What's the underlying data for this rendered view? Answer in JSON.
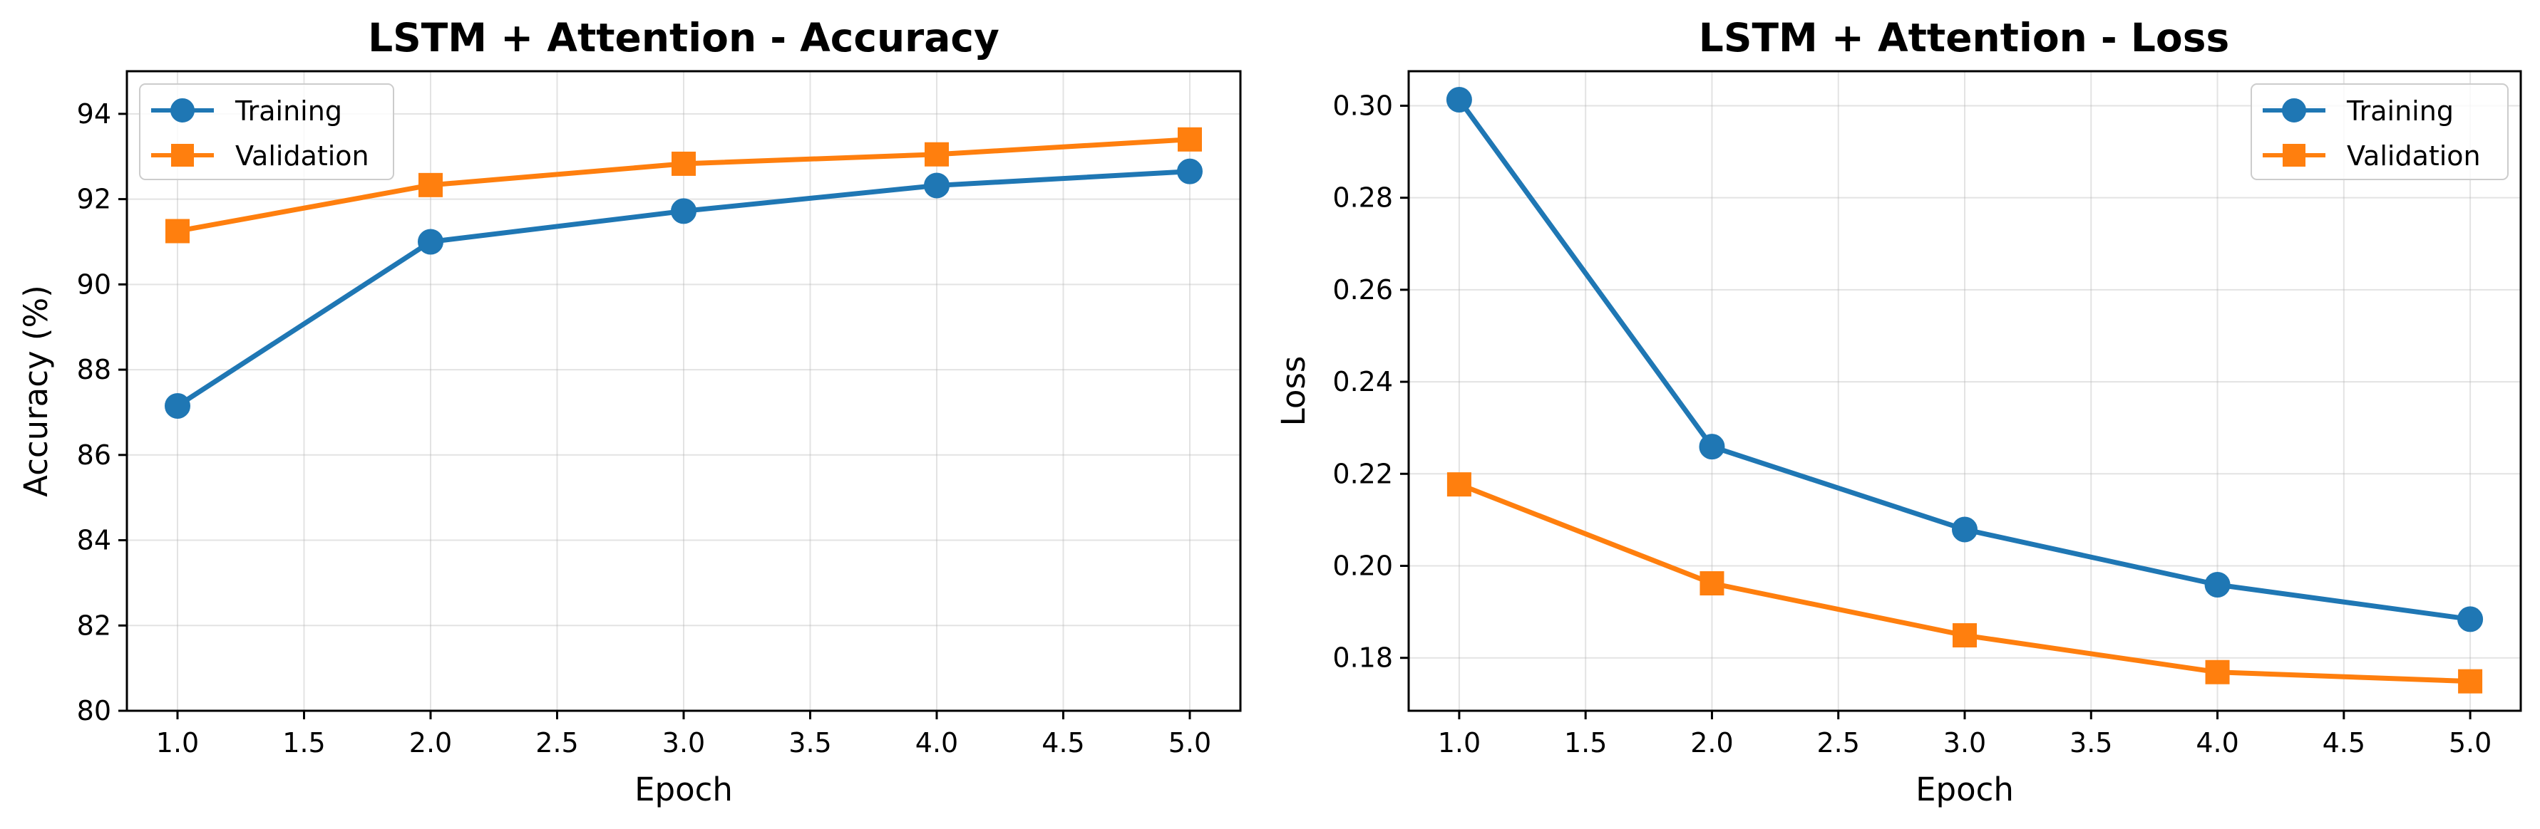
{
  "chart_data": [
    {
      "type": "line",
      "title": "LSTM + Attention - Accuracy",
      "xlabel": "Epoch",
      "ylabel": "Accuracy (%)",
      "x": [
        1,
        2,
        3,
        4,
        5
      ],
      "xlim": [
        0.8,
        5.2
      ],
      "ylim": [
        80,
        95
      ],
      "xticks": [
        "1.0",
        "1.5",
        "2.0",
        "2.5",
        "3.0",
        "3.5",
        "4.0",
        "4.5",
        "5.0"
      ],
      "yticks": [
        "80",
        "82",
        "84",
        "86",
        "88",
        "90",
        "92",
        "94"
      ],
      "grid": true,
      "legend_position": "upper-left",
      "series": [
        {
          "name": "Training",
          "values": [
            87.15,
            91.0,
            91.72,
            92.32,
            92.65
          ],
          "color": "#1f77b4",
          "marker": "circle"
        },
        {
          "name": "Validation",
          "values": [
            91.25,
            92.33,
            92.83,
            93.05,
            93.4
          ],
          "color": "#ff7f0e",
          "marker": "square"
        }
      ]
    },
    {
      "type": "line",
      "title": "LSTM + Attention - Loss",
      "xlabel": "Epoch",
      "ylabel": "Loss",
      "x": [
        1,
        2,
        3,
        4,
        5
      ],
      "xlim": [
        0.8,
        5.2
      ],
      "ylim": [
        0.1685,
        0.3075
      ],
      "xticks": [
        "1.0",
        "1.5",
        "2.0",
        "2.5",
        "3.0",
        "3.5",
        "4.0",
        "4.5",
        "5.0"
      ],
      "yticks": [
        "0.18",
        "0.20",
        "0.22",
        "0.24",
        "0.26",
        "0.28",
        "0.30"
      ],
      "grid": true,
      "legend_position": "upper-right",
      "series": [
        {
          "name": "Training",
          "values": [
            0.3013,
            0.2259,
            0.2079,
            0.1959,
            0.1884
          ],
          "color": "#1f77b4",
          "marker": "circle"
        },
        {
          "name": "Validation",
          "values": [
            0.2177,
            0.1962,
            0.1849,
            0.1769,
            0.1749
          ],
          "color": "#ff7f0e",
          "marker": "square"
        }
      ]
    }
  ]
}
